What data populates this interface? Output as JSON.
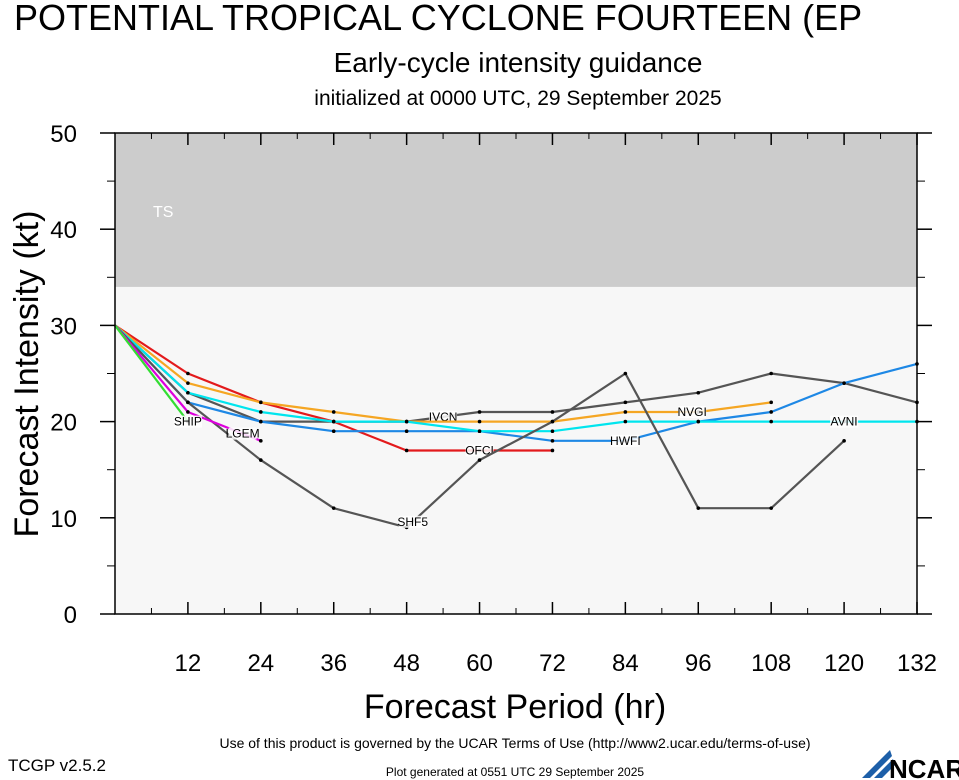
{
  "header": {
    "title": "POTENTIAL TROPICAL CYCLONE FOURTEEN (EP",
    "subtitle": "Early-cycle intensity guidance",
    "initialized": "initialized at 0000 UTC, 29 September 2025"
  },
  "footer": {
    "terms": "Use of this product is governed by the UCAR Terms of Use (http://www2.ucar.edu/terms-of-use)",
    "generated": "Plot generated at 0551 UTC   29 September 2025",
    "version": "TCGP v2.5.2",
    "logo_text": "NCAR"
  },
  "chart_data": {
    "type": "line",
    "xlabel": "Forecast Period (hr)",
    "ylabel": "Forecast Intensity (kt)",
    "xlim": [
      0,
      132
    ],
    "ylim": [
      0,
      50
    ],
    "xticks": [
      12,
      24,
      36,
      48,
      60,
      72,
      84,
      96,
      108,
      120,
      132
    ],
    "yticks": [
      0,
      10,
      20,
      30,
      40,
      50
    ],
    "bands": [
      {
        "label": "TS",
        "from": 34,
        "to": 50,
        "color": "#cccccc"
      }
    ],
    "plot_background": "#f7f7f7",
    "series": [
      {
        "name": "OFCI",
        "color": "#e31a1c",
        "label_at": 60,
        "points": [
          [
            0,
            30
          ],
          [
            12,
            25
          ],
          [
            24,
            22
          ],
          [
            36,
            20
          ],
          [
            48,
            17
          ],
          [
            60,
            17
          ],
          [
            72,
            17
          ]
        ]
      },
      {
        "name": "IVCN",
        "color": "#555555",
        "label_at": 54,
        "points": [
          [
            0,
            30
          ],
          [
            12,
            23
          ],
          [
            24,
            20
          ],
          [
            36,
            20
          ],
          [
            48,
            20
          ],
          [
            60,
            21
          ],
          [
            72,
            21
          ],
          [
            84,
            22
          ],
          [
            96,
            23
          ],
          [
            108,
            25
          ],
          [
            120,
            24
          ],
          [
            132,
            22
          ]
        ]
      },
      {
        "name": "NVGI",
        "color": "#f5a623",
        "label_at": 95,
        "points": [
          [
            0,
            30
          ],
          [
            12,
            24
          ],
          [
            24,
            22
          ],
          [
            36,
            21
          ],
          [
            48,
            20
          ],
          [
            60,
            20
          ],
          [
            72,
            20
          ],
          [
            84,
            21
          ],
          [
            96,
            21
          ],
          [
            108,
            22
          ]
        ]
      },
      {
        "name": "HWFI",
        "color": "#1e88e5",
        "label_at": 84,
        "points": [
          [
            0,
            30
          ],
          [
            12,
            22
          ],
          [
            24,
            20
          ],
          [
            36,
            19
          ],
          [
            48,
            19
          ],
          [
            60,
            19
          ],
          [
            72,
            18
          ],
          [
            84,
            18
          ],
          [
            96,
            20
          ],
          [
            108,
            21
          ],
          [
            120,
            24
          ],
          [
            132,
            26
          ]
        ]
      },
      {
        "name": "AVNI",
        "color": "#00e5ee",
        "label_at": 120,
        "points": [
          [
            0,
            30
          ],
          [
            12,
            23
          ],
          [
            24,
            21
          ],
          [
            36,
            20
          ],
          [
            48,
            20
          ],
          [
            60,
            19
          ],
          [
            72,
            19
          ],
          [
            84,
            20
          ],
          [
            96,
            20
          ],
          [
            108,
            20
          ],
          [
            120,
            20
          ],
          [
            132,
            20
          ]
        ]
      },
      {
        "name": "SHF5",
        "color": "#555555",
        "label_at": 49,
        "points": [
          [
            0,
            30
          ],
          [
            12,
            22
          ],
          [
            24,
            16
          ],
          [
            36,
            11
          ],
          [
            48,
            9
          ],
          [
            60,
            16
          ],
          [
            72,
            20
          ],
          [
            84,
            25
          ],
          [
            96,
            11
          ],
          [
            108,
            11
          ],
          [
            120,
            18
          ]
        ]
      },
      {
        "name": "LGEM",
        "color": "#dd00dd",
        "label_at": 21,
        "points": [
          [
            0,
            30
          ],
          [
            12,
            21
          ],
          [
            24,
            18
          ]
        ]
      },
      {
        "name": "SHIP",
        "color": "#33dd33",
        "label_at": 21,
        "points": [
          [
            0,
            30
          ],
          [
            12,
            20
          ]
        ]
      }
    ]
  }
}
